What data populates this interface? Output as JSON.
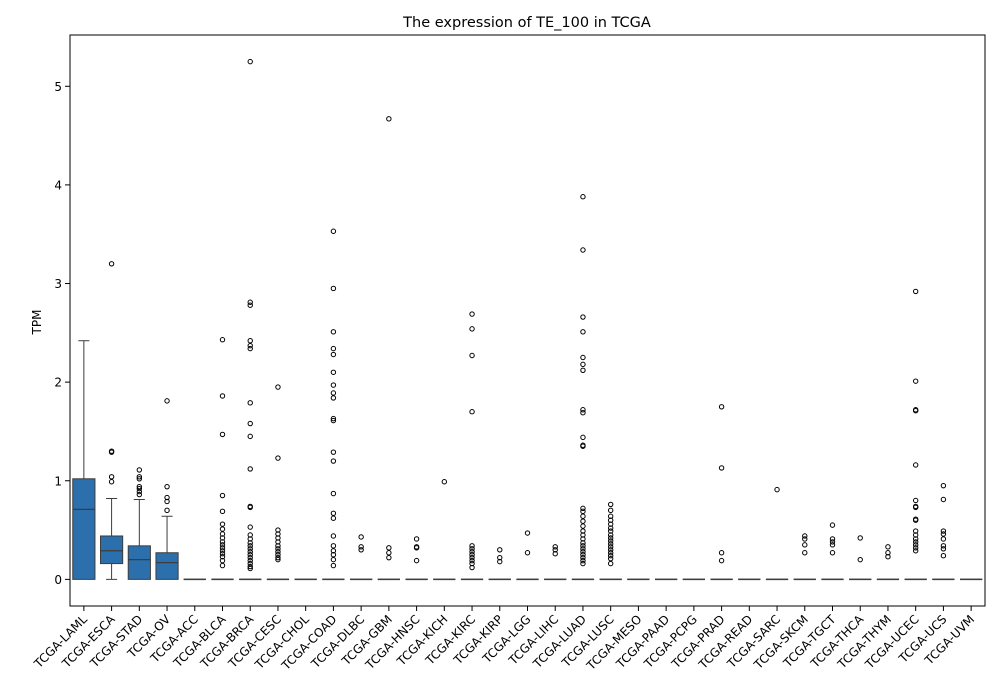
{
  "chart_data": {
    "type": "box",
    "title": "The expression of TE_100 in TCGA",
    "ylabel": "TPM",
    "xlabel": "",
    "ylim": [
      -0.27,
      5.52
    ],
    "yticks": [
      0,
      1,
      2,
      3,
      4,
      5
    ],
    "ytick_labels": [
      "0",
      "1",
      "2",
      "3",
      "4",
      "5"
    ],
    "grid": false,
    "box_color": "#2b6fad",
    "categories": [
      "TCGA-LAML",
      "TCGA-ESCA",
      "TCGA-STAD",
      "TCGA-OV",
      "TCGA-ACC",
      "TCGA-BLCA",
      "TCGA-BRCA",
      "TCGA-CESC",
      "TCGA-CHOL",
      "TCGA-COAD",
      "TCGA-DLBC",
      "TCGA-GBM",
      "TCGA-HNSC",
      "TCGA-KICH",
      "TCGA-KIRC",
      "TCGA-KIRP",
      "TCGA-LGG",
      "TCGA-LIHC",
      "TCGA-LUAD",
      "TCGA-LUSC",
      "TCGA-MESO",
      "TCGA-PAAD",
      "TCGA-PCPG",
      "TCGA-PRAD",
      "TCGA-READ",
      "TCGA-SARC",
      "TCGA-SKCM",
      "TCGA-TGCT",
      "TCGA-THCA",
      "TCGA-THYM",
      "TCGA-UCEC",
      "TCGA-UCS",
      "TCGA-UVM"
    ],
    "boxes": [
      {
        "whislo": 0,
        "q1": 0,
        "med": 0.71,
        "q3": 1.02,
        "whishi": 2.42,
        "fliers": []
      },
      {
        "whislo": 0,
        "q1": 0.16,
        "med": 0.29,
        "q3": 0.44,
        "whishi": 0.82,
        "fliers": [
          3.2,
          1.3,
          1.29,
          1.04,
          0.99
        ]
      },
      {
        "whislo": 0,
        "q1": 0,
        "med": 0.2,
        "q3": 0.34,
        "whishi": 0.81,
        "fliers": [
          1.11,
          1.04,
          1.02,
          0.94,
          0.92,
          0.89,
          0.86
        ]
      },
      {
        "whislo": 0,
        "q1": 0,
        "med": 0.17,
        "q3": 0.27,
        "whishi": 0.64,
        "fliers": [
          1.81,
          0.94,
          0.83,
          0.79,
          0.7
        ]
      },
      {
        "whislo": 0,
        "q1": 0,
        "med": 0,
        "q3": 0,
        "whishi": 0,
        "fliers": []
      },
      {
        "whislo": 0,
        "q1": 0,
        "med": 0,
        "q3": 0,
        "whishi": 0,
        "fliers": [
          2.43,
          1.86,
          1.47,
          0.85,
          0.69,
          0.56,
          0.51,
          0.46,
          0.42,
          0.38,
          0.35,
          0.32,
          0.29,
          0.26,
          0.23,
          0.19,
          0.14
        ]
      },
      {
        "whislo": 0,
        "q1": 0,
        "med": 0,
        "q3": 0,
        "whishi": 0,
        "fliers": [
          5.25,
          2.81,
          2.78,
          2.42,
          2.37,
          2.34,
          1.79,
          1.58,
          1.45,
          1.12,
          0.74,
          0.73,
          0.53,
          0.45,
          0.41,
          0.37,
          0.34,
          0.31,
          0.28,
          0.25,
          0.22,
          0.19,
          0.16,
          0.13,
          0.11
        ]
      },
      {
        "whislo": 0,
        "q1": 0,
        "med": 0,
        "q3": 0,
        "whishi": 0,
        "fliers": [
          1.95,
          1.23,
          0.5,
          0.46,
          0.42,
          0.38,
          0.34,
          0.31,
          0.28,
          0.25,
          0.22,
          0.2
        ]
      },
      {
        "whislo": 0,
        "q1": 0,
        "med": 0,
        "q3": 0,
        "whishi": 0,
        "fliers": []
      },
      {
        "whislo": 0,
        "q1": 0,
        "med": 0,
        "q3": 0,
        "whishi": 0,
        "fliers": [
          3.53,
          2.95,
          2.51,
          2.34,
          2.28,
          2.1,
          1.97,
          1.89,
          1.84,
          1.63,
          1.61,
          1.29,
          1.2,
          0.87,
          0.67,
          0.62,
          0.44,
          0.34,
          0.29,
          0.25,
          0.2,
          0.14
        ]
      },
      {
        "whislo": 0,
        "q1": 0,
        "med": 0,
        "q3": 0,
        "whishi": 0,
        "fliers": [
          0.43,
          0.33,
          0.3
        ]
      },
      {
        "whislo": 0,
        "q1": 0,
        "med": 0,
        "q3": 0,
        "whishi": 0,
        "fliers": [
          4.67,
          0.32,
          0.27,
          0.22
        ]
      },
      {
        "whislo": 0,
        "q1": 0,
        "med": 0,
        "q3": 0,
        "whishi": 0,
        "fliers": [
          0.41,
          0.33,
          0.32,
          0.19
        ]
      },
      {
        "whislo": 0,
        "q1": 0,
        "med": 0,
        "q3": 0,
        "whishi": 0,
        "fliers": [
          0.99
        ]
      },
      {
        "whislo": 0,
        "q1": 0,
        "med": 0,
        "q3": 0,
        "whishi": 0,
        "fliers": [
          2.69,
          2.54,
          2.27,
          1.7,
          0.34,
          0.31,
          0.28,
          0.25,
          0.22,
          0.19,
          0.16,
          0.12
        ]
      },
      {
        "whislo": 0,
        "q1": 0,
        "med": 0,
        "q3": 0,
        "whishi": 0,
        "fliers": [
          0.3,
          0.22,
          0.18
        ]
      },
      {
        "whislo": 0,
        "q1": 0,
        "med": 0,
        "q3": 0,
        "whishi": 0,
        "fliers": [
          0.47,
          0.27
        ]
      },
      {
        "whislo": 0,
        "q1": 0,
        "med": 0,
        "q3": 0,
        "whishi": 0,
        "fliers": [
          0.33,
          0.3,
          0.26
        ]
      },
      {
        "whislo": 0,
        "q1": 0,
        "med": 0,
        "q3": 0,
        "whishi": 0,
        "fliers": [
          3.88,
          3.34,
          2.66,
          2.51,
          2.25,
          2.18,
          2.12,
          1.72,
          1.69,
          1.44,
          1.36,
          1.35,
          0.72,
          0.69,
          0.64,
          0.59,
          0.54,
          0.49,
          0.45,
          0.41,
          0.37,
          0.34,
          0.31,
          0.28,
          0.25,
          0.22,
          0.19,
          0.16
        ]
      },
      {
        "whislo": 0,
        "q1": 0,
        "med": 0,
        "q3": 0,
        "whishi": 0,
        "fliers": [
          0.76,
          0.7,
          0.64,
          0.6,
          0.56,
          0.52,
          0.49,
          0.45,
          0.42,
          0.39,
          0.36,
          0.33,
          0.3,
          0.27,
          0.24,
          0.21,
          0.16
        ]
      },
      {
        "whislo": 0,
        "q1": 0,
        "med": 0,
        "q3": 0,
        "whishi": 0,
        "fliers": []
      },
      {
        "whislo": 0,
        "q1": 0,
        "med": 0,
        "q3": 0,
        "whishi": 0,
        "fliers": []
      },
      {
        "whislo": 0,
        "q1": 0,
        "med": 0,
        "q3": 0,
        "whishi": 0,
        "fliers": []
      },
      {
        "whislo": 0,
        "q1": 0,
        "med": 0,
        "q3": 0,
        "whishi": 0,
        "fliers": [
          1.75,
          1.13,
          0.27,
          0.19
        ]
      },
      {
        "whislo": 0,
        "q1": 0,
        "med": 0,
        "q3": 0,
        "whishi": 0,
        "fliers": []
      },
      {
        "whislo": 0,
        "q1": 0,
        "med": 0,
        "q3": 0,
        "whishi": 0,
        "fliers": [
          0.91
        ]
      },
      {
        "whislo": 0,
        "q1": 0,
        "med": 0,
        "q3": 0,
        "whishi": 0,
        "fliers": [
          0.44,
          0.41,
          0.35,
          0.27
        ]
      },
      {
        "whislo": 0,
        "q1": 0,
        "med": 0,
        "q3": 0,
        "whishi": 0,
        "fliers": [
          0.55,
          0.41,
          0.38,
          0.35,
          0.27
        ]
      },
      {
        "whislo": 0,
        "q1": 0,
        "med": 0,
        "q3": 0,
        "whishi": 0,
        "fliers": [
          0.42,
          0.2
        ]
      },
      {
        "whislo": 0,
        "q1": 0,
        "med": 0,
        "q3": 0,
        "whishi": 0,
        "fliers": [
          0.33,
          0.27,
          0.23
        ]
      },
      {
        "whislo": 0,
        "q1": 0,
        "med": 0,
        "q3": 0,
        "whishi": 0,
        "fliers": [
          2.92,
          2.01,
          1.72,
          1.71,
          1.16,
          0.8,
          0.74,
          0.73,
          0.61,
          0.6,
          0.49,
          0.45,
          0.41,
          0.38,
          0.35,
          0.32,
          0.29
        ]
      },
      {
        "whislo": 0,
        "q1": 0,
        "med": 0,
        "q3": 0,
        "whishi": 0,
        "fliers": [
          0.95,
          0.81,
          0.49,
          0.46,
          0.41,
          0.34,
          0.31,
          0.24
        ]
      },
      {
        "whislo": 0,
        "q1": 0,
        "med": 0,
        "q3": 0,
        "whishi": 0,
        "fliers": []
      }
    ]
  }
}
